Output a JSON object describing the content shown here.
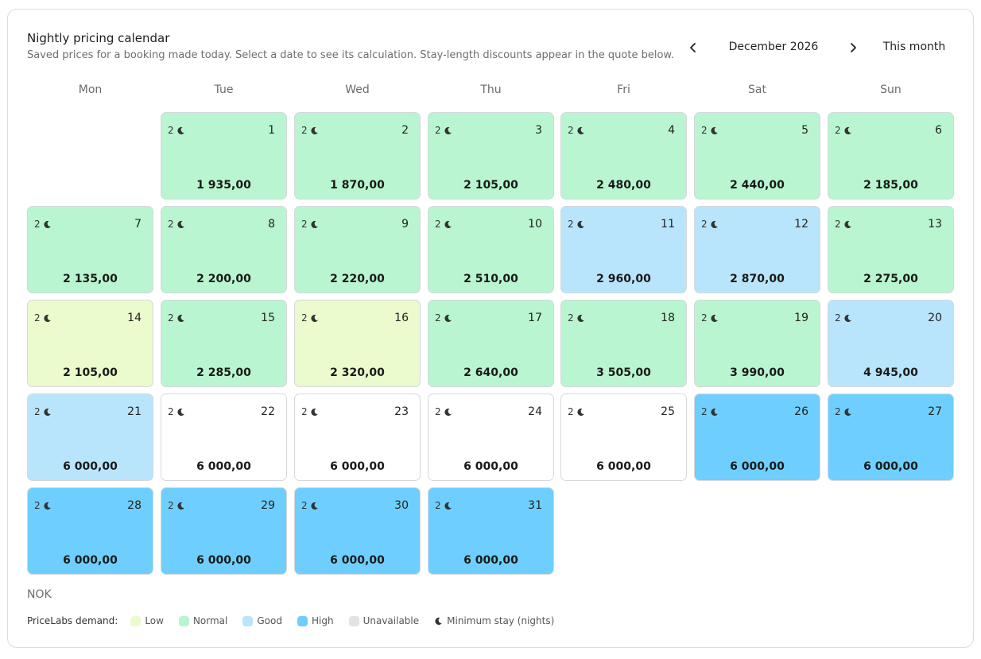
{
  "header": {
    "title": "Nightly pricing calendar",
    "subtitle": "Saved prices for a booking made today. Select a date to see its calculation. Stay-length discounts appear in the quote below."
  },
  "nav": {
    "month": "December 2026",
    "today_label": "This month"
  },
  "weekdays": [
    "Mon",
    "Tue",
    "Wed",
    "Thu",
    "Fri",
    "Sat",
    "Sun"
  ],
  "days": [
    {
      "day": "1",
      "price": "1 935,00",
      "min_stay": "2",
      "demand": "normal"
    },
    {
      "day": "2",
      "price": "1 870,00",
      "min_stay": "2",
      "demand": "normal"
    },
    {
      "day": "3",
      "price": "2 105,00",
      "min_stay": "2",
      "demand": "normal"
    },
    {
      "day": "4",
      "price": "2 480,00",
      "min_stay": "2",
      "demand": "normal"
    },
    {
      "day": "5",
      "price": "2 440,00",
      "min_stay": "2",
      "demand": "normal"
    },
    {
      "day": "6",
      "price": "2 185,00",
      "min_stay": "2",
      "demand": "normal"
    },
    {
      "day": "7",
      "price": "2 135,00",
      "min_stay": "2",
      "demand": "normal"
    },
    {
      "day": "8",
      "price": "2 200,00",
      "min_stay": "2",
      "demand": "normal"
    },
    {
      "day": "9",
      "price": "2 220,00",
      "min_stay": "2",
      "demand": "normal"
    },
    {
      "day": "10",
      "price": "2 510,00",
      "min_stay": "2",
      "demand": "normal"
    },
    {
      "day": "11",
      "price": "2 960,00",
      "min_stay": "2",
      "demand": "good"
    },
    {
      "day": "12",
      "price": "2 870,00",
      "min_stay": "2",
      "demand": "good"
    },
    {
      "day": "13",
      "price": "2 275,00",
      "min_stay": "2",
      "demand": "normal"
    },
    {
      "day": "14",
      "price": "2 105,00",
      "min_stay": "2",
      "demand": "low"
    },
    {
      "day": "15",
      "price": "2 285,00",
      "min_stay": "2",
      "demand": "normal"
    },
    {
      "day": "16",
      "price": "2 320,00",
      "min_stay": "2",
      "demand": "low"
    },
    {
      "day": "17",
      "price": "2 640,00",
      "min_stay": "2",
      "demand": "normal"
    },
    {
      "day": "18",
      "price": "3 505,00",
      "min_stay": "2",
      "demand": "normal"
    },
    {
      "day": "19",
      "price": "3 990,00",
      "min_stay": "2",
      "demand": "normal"
    },
    {
      "day": "20",
      "price": "4 945,00",
      "min_stay": "2",
      "demand": "good"
    },
    {
      "day": "21",
      "price": "6 000,00",
      "min_stay": "2",
      "demand": "good"
    },
    {
      "day": "22",
      "price": "6 000,00",
      "min_stay": "2",
      "demand": "unavailable"
    },
    {
      "day": "23",
      "price": "6 000,00",
      "min_stay": "2",
      "demand": "unavailable"
    },
    {
      "day": "24",
      "price": "6 000,00",
      "min_stay": "2",
      "demand": "unavailable"
    },
    {
      "day": "25",
      "price": "6 000,00",
      "min_stay": "2",
      "demand": "unavailable"
    },
    {
      "day": "26",
      "price": "6 000,00",
      "min_stay": "2",
      "demand": "high"
    },
    {
      "day": "27",
      "price": "6 000,00",
      "min_stay": "2",
      "demand": "high"
    },
    {
      "day": "28",
      "price": "6 000,00",
      "min_stay": "2",
      "demand": "high"
    },
    {
      "day": "29",
      "price": "6 000,00",
      "min_stay": "2",
      "demand": "high"
    },
    {
      "day": "30",
      "price": "6 000,00",
      "min_stay": "2",
      "demand": "high"
    },
    {
      "day": "31",
      "price": "6 000,00",
      "min_stay": "2",
      "demand": "high"
    }
  ],
  "currency": "NOK",
  "legend": {
    "title": "PriceLabs demand:",
    "items": [
      {
        "label": "Low",
        "color": "#ebfbcd"
      },
      {
        "label": "Normal",
        "color": "#b9f5d0"
      },
      {
        "label": "Good",
        "color": "#b9e5fc"
      },
      {
        "label": "High",
        "color": "#6ecffe"
      },
      {
        "label": "Unavailable",
        "color": "#e3e3e3"
      }
    ],
    "min_stay_label": "Minimum stay (nights)"
  }
}
